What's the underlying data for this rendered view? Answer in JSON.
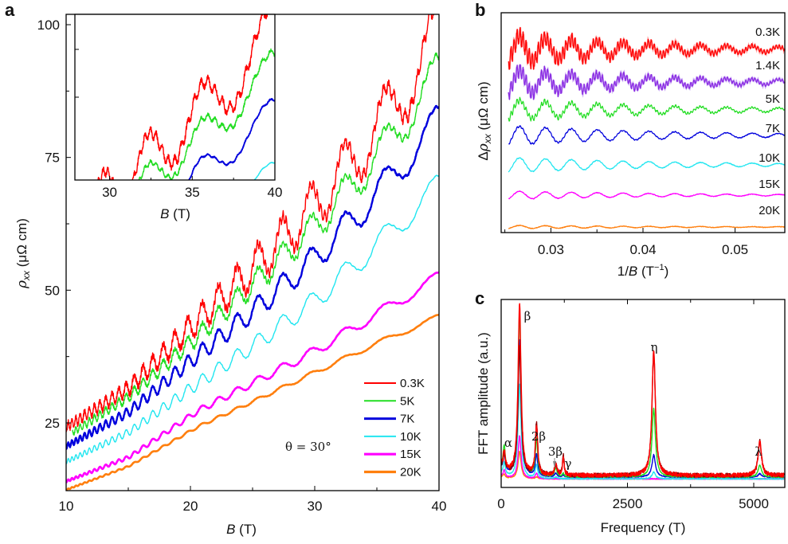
{
  "figure": {
    "panel_letters": [
      "a",
      "b",
      "c"
    ]
  },
  "chart_data": [
    {
      "id": "a",
      "type": "line",
      "title": "",
      "xlabel_italic": "B",
      "xlabel_rest": " (T)",
      "ylabel_symbol": "ρ",
      "ylabel_sub": "xx",
      "ylabel_rest": " (μΩ cm)",
      "xlim": [
        10,
        40
      ],
      "ylim": [
        12.3,
        102
      ],
      "xticks": [
        10,
        20,
        30,
        40
      ],
      "xminor": [
        15,
        25,
        35
      ],
      "yticks": [
        25,
        50,
        75,
        100
      ],
      "ytick_labels": [
        "25",
        "50",
        "75",
        "100"
      ],
      "legend_position": "bottom-right",
      "annotation": "θ = 30°",
      "oscillation_period_invB": 0.00281,
      "series": [
        {
          "name": "0.3K",
          "color": "#ff0000",
          "width": 1.4,
          "x": [
            10,
            15,
            20.7,
            25,
            30,
            35,
            40
          ],
          "y": [
            24.2,
            31.5,
            44.6,
            54,
            66,
            80,
            98.3
          ],
          "amp": [
            0.8,
            1.3,
            2.5,
            3.5,
            4.5,
            5.5,
            6.5
          ],
          "noise": 1.0
        },
        {
          "name": "5K",
          "color": "#22dd22",
          "width": 1.4,
          "x": [
            10.5,
            15,
            20.7,
            25,
            30,
            35,
            40
          ],
          "y": [
            23.2,
            29.8,
            41.6,
            51,
            62,
            75,
            91
          ],
          "amp": [
            0.6,
            0.9,
            1.6,
            2.2,
            2.8,
            3.5,
            4.0
          ],
          "noise": 0.5
        },
        {
          "name": "7K",
          "color": "#0000dd",
          "width": 2.4,
          "x": [
            10,
            15,
            20.7,
            25,
            30,
            35,
            40
          ],
          "y": [
            20.6,
            27,
            38,
            46,
            56,
            68,
            82
          ],
          "amp": [
            0.5,
            0.9,
            1.5,
            2.0,
            2.5,
            3.0,
            3.2
          ],
          "noise": 0.2
        },
        {
          "name": "10K",
          "color": "#22e6f0",
          "width": 1.4,
          "x": [
            10,
            15,
            20.7,
            25,
            30,
            35,
            40
          ],
          "y": [
            17.7,
            23.2,
            32.6,
            39.5,
            48,
            58.5,
            69.7
          ],
          "amp": [
            0.4,
            0.7,
            1.2,
            1.5,
            1.9,
            2.2,
            2.4
          ],
          "noise": 0.1
        },
        {
          "name": "15K",
          "color": "#ff00ff",
          "width": 2.6,
          "x": [
            10,
            15,
            20.7,
            25,
            30,
            35,
            40
          ],
          "y": [
            14,
            18.5,
            27.4,
            32.5,
            38.5,
            45.5,
            52.5
          ],
          "amp": [
            0.2,
            0.35,
            0.55,
            0.7,
            0.9,
            1.0,
            1.1
          ],
          "noise": 0.05
        },
        {
          "name": "20K",
          "color": "#ff7f0e",
          "width": 2.6,
          "x": [
            10,
            15,
            20.7,
            25,
            30,
            35,
            40
          ],
          "y": [
            12.4,
            16.8,
            24.4,
            29,
            34.5,
            40,
            45
          ],
          "amp": [
            0.1,
            0.15,
            0.25,
            0.3,
            0.4,
            0.45,
            0.5
          ],
          "noise": 0.03
        }
      ],
      "inset": {
        "xlabel_italic": "B",
        "xlabel_rest": " (T)",
        "xlim": [
          27.9,
          40
        ],
        "ylim": [
          68,
          102
        ],
        "xticks": [
          30,
          35,
          40
        ],
        "series_shown": [
          "0.3K",
          "5K",
          "7K",
          "10K"
        ]
      }
    },
    {
      "id": "b",
      "type": "line",
      "xlabel_pre": "1/",
      "xlabel_italic": "B",
      "xlabel_rest": " (T",
      "xlabel_sup": "−1",
      "xlabel_close": ")",
      "ylabel_pre": "Δ",
      "ylabel_symbol": "ρ",
      "ylabel_sub": "xx",
      "ylabel_rest": " (μΩ cm)",
      "xlim": [
        0.0246,
        0.0554
      ],
      "xticks": [
        0.03,
        0.04,
        0.05
      ],
      "xtick_labels": [
        "0.03",
        "0.04",
        "0.05"
      ],
      "xminor": [
        0.025,
        0.035,
        0.045
      ],
      "yticks": [],
      "series": [
        {
          "name": "0.3K",
          "color": "#ff0000",
          "light": "#ff9c9c",
          "offset": 0.0,
          "amp": 1.0,
          "hf": 1.0
        },
        {
          "name": "1.4K",
          "color": "#8a2be2",
          "light": "#c9a6f5",
          "offset": 1.0,
          "amp": 0.9,
          "hf": 0.8
        },
        {
          "name": "5K",
          "color": "#22dd22",
          "light": "#22dd22",
          "offset": 1.85,
          "amp": 0.75,
          "hf": 0.35
        },
        {
          "name": "7K",
          "color": "#0000dd",
          "light": "#0000dd",
          "offset": 2.6,
          "amp": 0.7,
          "hf": 0.1
        },
        {
          "name": "10K",
          "color": "#22e6f0",
          "light": "#22e6f0",
          "offset": 3.5,
          "amp": 0.55,
          "hf": 0.04
        },
        {
          "name": "15K",
          "color": "#ff00ff",
          "light": "#ff00ff",
          "offset": 4.4,
          "amp": 0.3,
          "hf": 0.02
        },
        {
          "name": "20K",
          "color": "#ff7f0e",
          "light": "#ff7f0e",
          "offset": 5.35,
          "amp": 0.12,
          "hf": 0.01
        }
      ],
      "period_invB": 0.00281
    },
    {
      "id": "c",
      "type": "line",
      "xlabel": "Frequency (T)",
      "ylabel": "FFT amplitude (a.u.)",
      "xlim": [
        0,
        5600
      ],
      "ylim": [
        0,
        1.05
      ],
      "xticks": [
        0,
        2500,
        5000
      ],
      "xtick_labels": [
        "0",
        "2500",
        "5000"
      ],
      "xminor": [
        1250,
        3750
      ],
      "peaks": [
        {
          "label": "α",
          "freq": 60
        },
        {
          "label": "β",
          "freq": 364
        },
        {
          "label": "2β",
          "freq": 700
        },
        {
          "label": "3β",
          "freq": 1080
        },
        {
          "label": "γ",
          "freq": 1230
        },
        {
          "label": "η",
          "freq": 3020
        },
        {
          "label": "λ",
          "freq": 5120
        }
      ],
      "series": [
        {
          "name": "0.3K",
          "color": "#ff0000",
          "heights": {
            "α": 0.1,
            "β": 1.0,
            "2β": 0.28,
            "3β": 0.06,
            "γ": 0.1,
            "η": 0.73,
            "λ": 0.2
          }
        },
        {
          "name": "1.4K",
          "color": "#8b0000",
          "heights": {
            "α": 0.09,
            "β": 0.75,
            "2β": 0.3,
            "3β": 0.06,
            "γ": 0.12,
            "η": 0.72,
            "λ": 0.2
          }
        },
        {
          "name": "5K",
          "color": "#22dd22",
          "heights": {
            "α": 0.14,
            "β": 0.96,
            "2β": 0.22,
            "3β": 0.05,
            "γ": 0.02,
            "η": 0.4,
            "λ": 0.07
          }
        },
        {
          "name": "7K",
          "color": "#0000dd",
          "heights": {
            "α": 0.1,
            "β": 0.8,
            "2β": 0.13,
            "3β": 0.02,
            "γ": 0.01,
            "η": 0.13,
            "λ": 0.02
          }
        },
        {
          "name": "10K",
          "color": "#22e6f0",
          "heights": {
            "α": 0.07,
            "β": 0.55,
            "2β": 0.08,
            "3β": 0.01,
            "γ": 0.0,
            "η": 0.04,
            "λ": 0.0
          }
        },
        {
          "name": "15K",
          "color": "#ff00ff",
          "heights": {
            "α": 0.04,
            "β": 0.25,
            "2β": 0.03,
            "3β": 0.0,
            "γ": 0.0,
            "η": 0.0,
            "λ": 0.0
          }
        },
        {
          "name": "20K",
          "color": "#ff7f0e",
          "heights": {
            "α": 0.02,
            "β": 0.16,
            "2β": 0.01,
            "3β": 0.0,
            "γ": 0.0,
            "η": 0.0,
            "λ": 0.0
          }
        }
      ]
    }
  ]
}
